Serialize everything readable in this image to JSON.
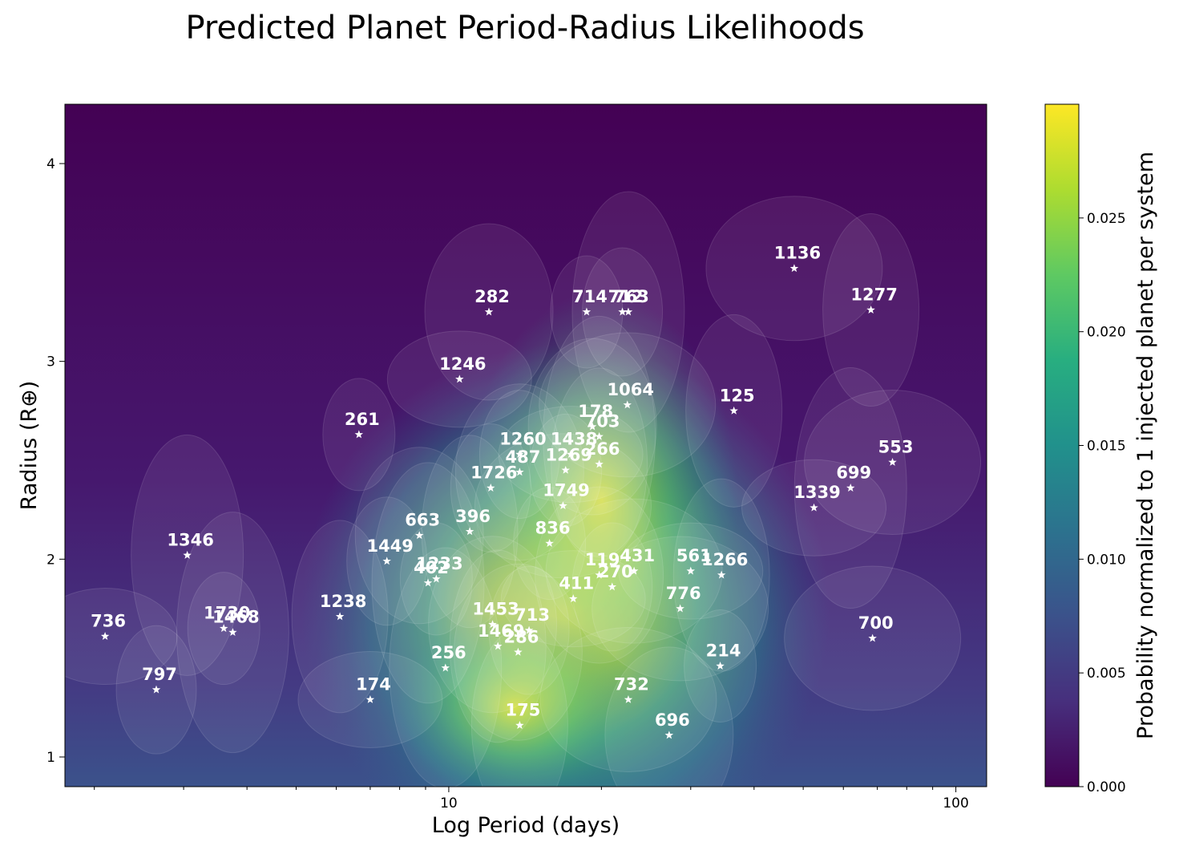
{
  "chart_data": {
    "type": "scatter",
    "title": "Predicted Planet Period-Radius Likelihoods",
    "xlabel": "Log Period (days)",
    "ylabel": "Radius (R⊕)",
    "xscale": "log",
    "xlim": [
      1.75,
      115
    ],
    "ylim": [
      0.85,
      4.3
    ],
    "x_ticks": [
      {
        "value": 10,
        "label": "10"
      },
      {
        "value": 100,
        "label": "100"
      }
    ],
    "y_ticks": [
      {
        "value": 1,
        "label": "1"
      },
      {
        "value": 2,
        "label": "2"
      },
      {
        "value": 3,
        "label": "3"
      },
      {
        "value": 4,
        "label": "4"
      }
    ],
    "background": "probability heatmap with translucent likelihood ellipses per system (viridis colormap)",
    "colorbar": {
      "label": "Probability normalized to 1 injected planet per system",
      "range": [
        0.0,
        0.03
      ],
      "ticks": [
        "0.000",
        "0.005",
        "0.010",
        "0.015",
        "0.020",
        "0.025"
      ],
      "colormap": [
        "#440154",
        "#472f7d",
        "#3b528b",
        "#2c728e",
        "#21918c",
        "#28ae80",
        "#5ec962",
        "#addc30",
        "#fde725"
      ]
    },
    "points": [
      {
        "label": "1136",
        "x": 48.0,
        "y": 3.47
      },
      {
        "label": "1277",
        "x": 68.0,
        "y": 3.26
      },
      {
        "label": "282",
        "x": 12.0,
        "y": 3.25
      },
      {
        "label": "714",
        "x": 18.7,
        "y": 3.25
      },
      {
        "label": "763",
        "x": 22.6,
        "y": 3.25
      },
      {
        "label": "712",
        "x": 22.0,
        "y": 3.25
      },
      {
        "label": "1246",
        "x": 10.5,
        "y": 2.91
      },
      {
        "label": "1064",
        "x": 22.5,
        "y": 2.78
      },
      {
        "label": "125",
        "x": 36.5,
        "y": 2.75
      },
      {
        "label": "178",
        "x": 19.2,
        "y": 2.67
      },
      {
        "label": "261",
        "x": 6.65,
        "y": 2.63
      },
      {
        "label": "703",
        "x": 19.8,
        "y": 2.62
      },
      {
        "label": "1260",
        "x": 13.8,
        "y": 2.53
      },
      {
        "label": "1438",
        "x": 17.4,
        "y": 2.53
      },
      {
        "label": "553",
        "x": 75.0,
        "y": 2.49
      },
      {
        "label": "266",
        "x": 19.8,
        "y": 2.48
      },
      {
        "label": "487",
        "x": 13.8,
        "y": 2.44
      },
      {
        "label": "1269",
        "x": 17.0,
        "y": 2.45
      },
      {
        "label": "699",
        "x": 62.0,
        "y": 2.36
      },
      {
        "label": "1726",
        "x": 12.1,
        "y": 2.36
      },
      {
        "label": "1339",
        "x": 52.5,
        "y": 2.26
      },
      {
        "label": "1749",
        "x": 16.8,
        "y": 2.27
      },
      {
        "label": "396",
        "x": 11.0,
        "y": 2.14
      },
      {
        "label": "663",
        "x": 8.75,
        "y": 2.12
      },
      {
        "label": "836",
        "x": 15.8,
        "y": 2.08
      },
      {
        "label": "1346",
        "x": 3.05,
        "y": 2.02
      },
      {
        "label": "1449",
        "x": 7.55,
        "y": 1.99
      },
      {
        "label": "561",
        "x": 30.0,
        "y": 1.94
      },
      {
        "label": "431",
        "x": 23.2,
        "y": 1.94
      },
      {
        "label": "1266",
        "x": 34.5,
        "y": 1.92
      },
      {
        "label": "119",
        "x": 19.8,
        "y": 1.92
      },
      {
        "label": "1233",
        "x": 9.45,
        "y": 1.9
      },
      {
        "label": "402",
        "x": 9.1,
        "y": 1.88
      },
      {
        "label": "270",
        "x": 21.0,
        "y": 1.86
      },
      {
        "label": "411",
        "x": 17.6,
        "y": 1.8
      },
      {
        "label": "776",
        "x": 28.6,
        "y": 1.75
      },
      {
        "label": "1238",
        "x": 6.1,
        "y": 1.71
      },
      {
        "label": "1453",
        "x": 12.2,
        "y": 1.67
      },
      {
        "label": "1730",
        "x": 3.6,
        "y": 1.65
      },
      {
        "label": "1468",
        "x": 3.75,
        "y": 1.63
      },
      {
        "label": "713",
        "x": 14.4,
        "y": 1.64
      },
      {
        "label": "736",
        "x": 2.1,
        "y": 1.61
      },
      {
        "label": "700",
        "x": 68.5,
        "y": 1.6
      },
      {
        "label": "1469",
        "x": 12.5,
        "y": 1.56
      },
      {
        "label": "286",
        "x": 13.7,
        "y": 1.53
      },
      {
        "label": "214",
        "x": 34.3,
        "y": 1.46
      },
      {
        "label": "256",
        "x": 9.85,
        "y": 1.45
      },
      {
        "label": "797",
        "x": 2.65,
        "y": 1.34
      },
      {
        "label": "174",
        "x": 7.0,
        "y": 1.29
      },
      {
        "label": "732",
        "x": 22.6,
        "y": 1.29
      },
      {
        "label": "175",
        "x": 13.8,
        "y": 1.16
      },
      {
        "label": "696",
        "x": 27.2,
        "y": 1.11
      }
    ]
  }
}
